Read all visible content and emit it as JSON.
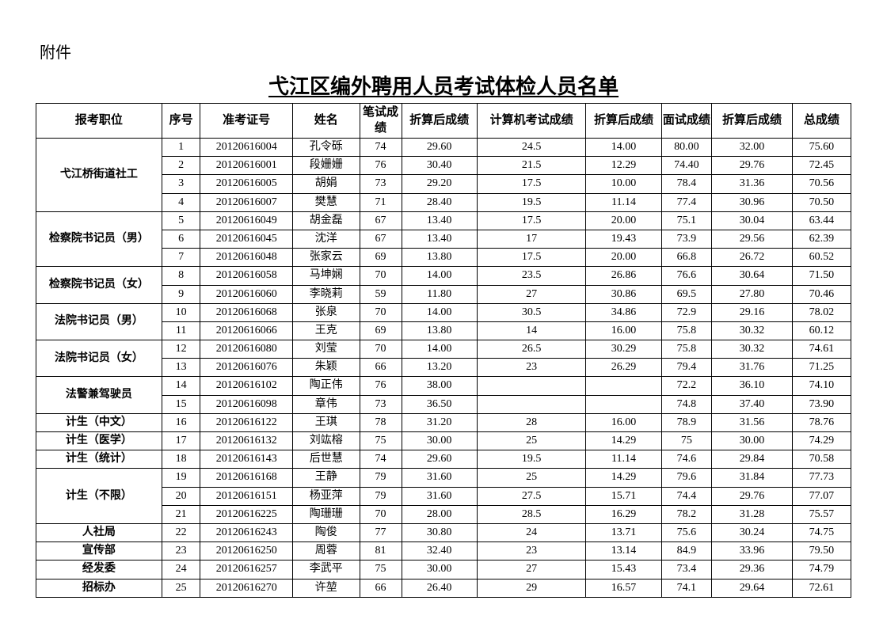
{
  "attachment_label": "附件",
  "title": "弋江区编外聘用人员考试体检人员名单",
  "columns": {
    "position": "报考职位",
    "seq": "序号",
    "exam_no": "准考证号",
    "name": "姓名",
    "written_score": "笔试成绩",
    "written_conv": "折算后成绩",
    "computer_score": "计算机考试成绩",
    "computer_conv": "折算后成绩",
    "interview_score": "面试成绩",
    "interview_conv": "折算后成绩",
    "total": "总成绩"
  },
  "positions": [
    {
      "label": "弋江桥街道社工",
      "rows": [
        {
          "seq": "1",
          "exam_no": "20120616004",
          "name": "孔令砾",
          "ws": "74",
          "wsc": "29.60",
          "cs": "24.5",
          "csc": "14.00",
          "is": "80.00",
          "isc": "32.00",
          "tot": "75.60"
        },
        {
          "seq": "2",
          "exam_no": "20120616001",
          "name": "段姗姗",
          "ws": "76",
          "wsc": "30.40",
          "cs": "21.5",
          "csc": "12.29",
          "is": "74.40",
          "isc": "29.76",
          "tot": "72.45"
        },
        {
          "seq": "3",
          "exam_no": "20120616005",
          "name": "胡娟",
          "ws": "73",
          "wsc": "29.20",
          "cs": "17.5",
          "csc": "10.00",
          "is": "78.4",
          "isc": "31.36",
          "tot": "70.56"
        },
        {
          "seq": "4",
          "exam_no": "20120616007",
          "name": "樊慧",
          "ws": "71",
          "wsc": "28.40",
          "cs": "19.5",
          "csc": "11.14",
          "is": "77.4",
          "isc": "30.96",
          "tot": "70.50"
        }
      ]
    },
    {
      "label": "检察院书记员（男）",
      "rows": [
        {
          "seq": "5",
          "exam_no": "20120616049",
          "name": "胡金磊",
          "ws": "67",
          "wsc": "13.40",
          "cs": "17.5",
          "csc": "20.00",
          "is": "75.1",
          "isc": "30.04",
          "tot": "63.44"
        },
        {
          "seq": "6",
          "exam_no": "20120616045",
          "name": "沈洋",
          "ws": "67",
          "wsc": "13.40",
          "cs": "17",
          "csc": "19.43",
          "is": "73.9",
          "isc": "29.56",
          "tot": "62.39"
        },
        {
          "seq": "7",
          "exam_no": "20120616048",
          "name": "张家云",
          "ws": "69",
          "wsc": "13.80",
          "cs": "17.5",
          "csc": "20.00",
          "is": "66.8",
          "isc": "26.72",
          "tot": "60.52"
        }
      ]
    },
    {
      "label": "检察院书记员（女）",
      "rows": [
        {
          "seq": "8",
          "exam_no": "20120616058",
          "name": "马坤娴",
          "ws": "70",
          "wsc": "14.00",
          "cs": "23.5",
          "csc": "26.86",
          "is": "76.6",
          "isc": "30.64",
          "tot": "71.50"
        },
        {
          "seq": "9",
          "exam_no": "20120616060",
          "name": "李晓莉",
          "ws": "59",
          "wsc": "11.80",
          "cs": "27",
          "csc": "30.86",
          "is": "69.5",
          "isc": "27.80",
          "tot": "70.46"
        }
      ]
    },
    {
      "label": "法院书记员（男）",
      "rows": [
        {
          "seq": "10",
          "exam_no": "20120616068",
          "name": "张泉",
          "ws": "70",
          "wsc": "14.00",
          "cs": "30.5",
          "csc": "34.86",
          "is": "72.9",
          "isc": "29.16",
          "tot": "78.02"
        },
        {
          "seq": "11",
          "exam_no": "20120616066",
          "name": "王克",
          "ws": "69",
          "wsc": "13.80",
          "cs": "14",
          "csc": "16.00",
          "is": "75.8",
          "isc": "30.32",
          "tot": "60.12"
        }
      ]
    },
    {
      "label": "法院书记员（女）",
      "rows": [
        {
          "seq": "12",
          "exam_no": "20120616080",
          "name": "刘莹",
          "ws": "70",
          "wsc": "14.00",
          "cs": "26.5",
          "csc": "30.29",
          "is": "75.8",
          "isc": "30.32",
          "tot": "74.61"
        },
        {
          "seq": "13",
          "exam_no": "20120616076",
          "name": "朱颖",
          "ws": "66",
          "wsc": "13.20",
          "cs": "23",
          "csc": "26.29",
          "is": "79.4",
          "isc": "31.76",
          "tot": "71.25"
        }
      ]
    },
    {
      "label": "法警兼驾驶员",
      "rows": [
        {
          "seq": "14",
          "exam_no": "20120616102",
          "name": "陶正伟",
          "ws": "76",
          "wsc": "38.00",
          "cs": "",
          "csc": "",
          "is": "72.2",
          "isc": "36.10",
          "tot": "74.10"
        },
        {
          "seq": "15",
          "exam_no": "20120616098",
          "name": "章伟",
          "ws": "73",
          "wsc": "36.50",
          "cs": "",
          "csc": "",
          "is": "74.8",
          "isc": "37.40",
          "tot": "73.90"
        }
      ]
    },
    {
      "label": "计生（中文）",
      "rows": [
        {
          "seq": "16",
          "exam_no": "20120616122",
          "name": "王琪",
          "ws": "78",
          "wsc": "31.20",
          "cs": "28",
          "csc": "16.00",
          "is": "78.9",
          "isc": "31.56",
          "tot": "78.76"
        }
      ]
    },
    {
      "label": "计生（医学）",
      "rows": [
        {
          "seq": "17",
          "exam_no": "20120616132",
          "name": "刘竑榕",
          "ws": "75",
          "wsc": "30.00",
          "cs": "25",
          "csc": "14.29",
          "is": "75",
          "isc": "30.00",
          "tot": "74.29"
        }
      ]
    },
    {
      "label": "计生（统计）",
      "rows": [
        {
          "seq": "18",
          "exam_no": "20120616143",
          "name": "后世慧",
          "ws": "74",
          "wsc": "29.60",
          "cs": "19.5",
          "csc": "11.14",
          "is": "74.6",
          "isc": "29.84",
          "tot": "70.58"
        }
      ]
    },
    {
      "label": "计生（不限）",
      "rows": [
        {
          "seq": "19",
          "exam_no": "20120616168",
          "name": "王静",
          "ws": "79",
          "wsc": "31.60",
          "cs": "25",
          "csc": "14.29",
          "is": "79.6",
          "isc": "31.84",
          "tot": "77.73"
        },
        {
          "seq": "20",
          "exam_no": "20120616151",
          "name": "杨亚萍",
          "ws": "79",
          "wsc": "31.60",
          "cs": "27.5",
          "csc": "15.71",
          "is": "74.4",
          "isc": "29.76",
          "tot": "77.07"
        },
        {
          "seq": "21",
          "exam_no": "20120616225",
          "name": "陶珊珊",
          "ws": "70",
          "wsc": "28.00",
          "cs": "28.5",
          "csc": "16.29",
          "is": "78.2",
          "isc": "31.28",
          "tot": "75.57"
        }
      ]
    },
    {
      "label": "人社局",
      "rows": [
        {
          "seq": "22",
          "exam_no": "20120616243",
          "name": "陶俊",
          "ws": "77",
          "wsc": "30.80",
          "cs": "24",
          "csc": "13.71",
          "is": "75.6",
          "isc": "30.24",
          "tot": "74.75"
        }
      ]
    },
    {
      "label": "宣传部",
      "rows": [
        {
          "seq": "23",
          "exam_no": "20120616250",
          "name": "周蓉",
          "ws": "81",
          "wsc": "32.40",
          "cs": "23",
          "csc": "13.14",
          "is": "84.9",
          "isc": "33.96",
          "tot": "79.50"
        }
      ]
    },
    {
      "label": "经发委",
      "rows": [
        {
          "seq": "24",
          "exam_no": "20120616257",
          "name": "李武平",
          "ws": "75",
          "wsc": "30.00",
          "cs": "27",
          "csc": "15.43",
          "is": "73.4",
          "isc": "29.36",
          "tot": "74.79"
        }
      ]
    },
    {
      "label": "招标办",
      "rows": [
        {
          "seq": "25",
          "exam_no": "20120616270",
          "name": "许堃",
          "ws": "66",
          "wsc": "26.40",
          "cs": "29",
          "csc": "16.57",
          "is": "74.1",
          "isc": "29.64",
          "tot": "72.61"
        }
      ]
    }
  ]
}
